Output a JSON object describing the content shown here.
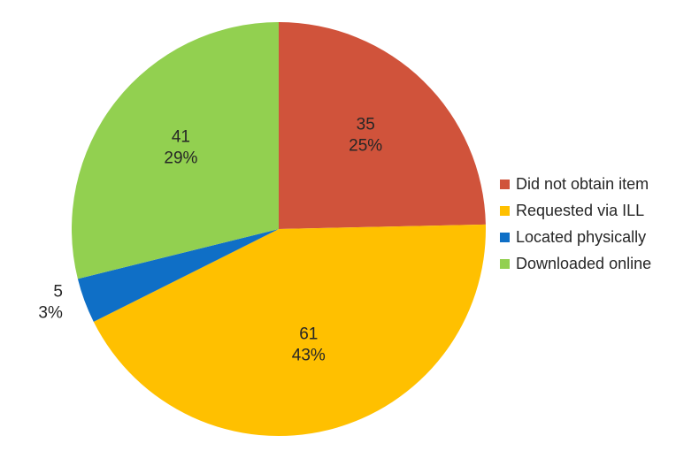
{
  "chart_data": {
    "type": "pie",
    "title": "",
    "start_angle_deg": 0,
    "direction": "clockwise",
    "legend_position": "right",
    "slices": [
      {
        "label": "Did not obtain item",
        "value": 35,
        "percent": "25%",
        "color": "#d0533b"
      },
      {
        "label": "Requested via ILL",
        "value": 61,
        "percent": "43%",
        "color": "#ffc000"
      },
      {
        "label": "Located physically",
        "value": 5,
        "percent": "3%",
        "color": "#0f6fc6"
      },
      {
        "label": "Downloaded online",
        "value": 41,
        "percent": "29%",
        "color": "#92d050"
      }
    ]
  }
}
